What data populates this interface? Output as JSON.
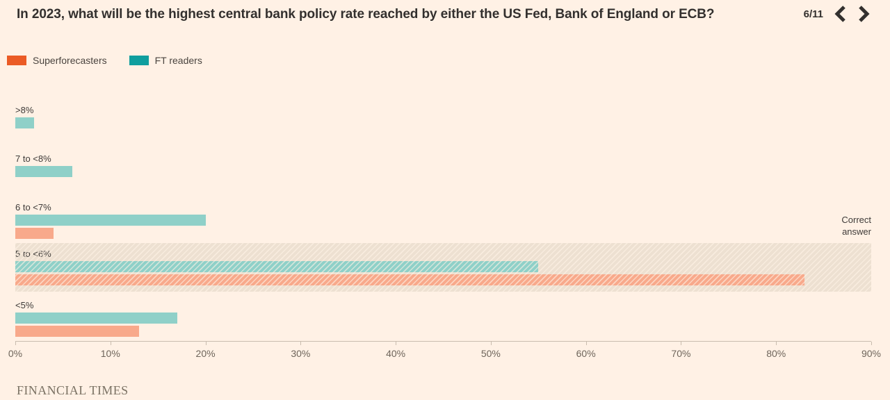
{
  "header": {
    "title": "In 2023, what will be the highest central bank policy rate reached by either the US Fed, Bank of England or ECB?",
    "page_indicator": "6/11"
  },
  "legend": {
    "items": [
      {
        "label": "Superforecasters",
        "color": "#EB5B25"
      },
      {
        "label": "FT readers",
        "color": "#0F9E9E"
      }
    ]
  },
  "chart_data": {
    "type": "bar",
    "orientation": "horizontal",
    "title": "In 2023, what will be the highest central bank policy rate reached by either the US Fed, Bank of England or ECB?",
    "categories": [
      ">8%",
      "7 to <8%",
      "6 to <7%",
      "5 to <6%",
      "<5%"
    ],
    "series": [
      {
        "name": "FT readers",
        "color": "#8FD0C8",
        "values": [
          2,
          6,
          20,
          55,
          17
        ]
      },
      {
        "name": "Superforecasters",
        "color": "#F8A98B",
        "values": [
          0,
          0,
          4,
          83,
          13
        ]
      }
    ],
    "xlim": [
      0,
      90
    ],
    "x_ticks": [
      "0%",
      "10%",
      "20%",
      "30%",
      "40%",
      "50%",
      "60%",
      "70%",
      "80%",
      "90%"
    ],
    "grid": false,
    "legend_position": "top-left",
    "correct_answer_category": "5 to <6%",
    "annotation": "Correct answer",
    "band_color": "#EDE0D1"
  },
  "footer": {
    "brand": "FINANCIAL TIMES"
  }
}
